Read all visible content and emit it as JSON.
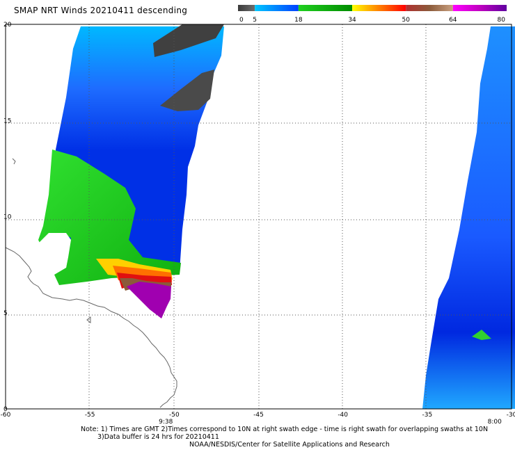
{
  "title": "SMAP NRT Winds  20210411 descending",
  "colorbar": {
    "segments": [
      {
        "from": 0,
        "to": 5,
        "colors": [
          "#3a3a3a",
          "#6e6e6e"
        ]
      },
      {
        "from": 5,
        "to": 18,
        "colors": [
          "#00c8ff",
          "#0040ff"
        ]
      },
      {
        "from": 18,
        "to": 34,
        "colors": [
          "#20d020",
          "#008c00"
        ]
      },
      {
        "from": 34,
        "to": 50,
        "colors": [
          "#ffff00",
          "#ff8000",
          "#ff0000"
        ]
      },
      {
        "from": 50,
        "to": 64,
        "colors": [
          "#b03030",
          "#8b5a3a",
          "#c8a080"
        ]
      },
      {
        "from": 64,
        "to": 80,
        "colors": [
          "#ff00ff",
          "#c000c0",
          "#6000a0"
        ]
      }
    ],
    "tick_labels": [
      "0",
      "5",
      "18",
      "34",
      "50",
      "64",
      "80"
    ]
  },
  "map": {
    "lon_range": [
      -60,
      -30
    ],
    "lat_range": [
      0,
      20
    ],
    "lon_tick_labels": [
      "-60",
      "-55",
      "-50",
      "-45",
      "-40",
      "-35",
      "-30"
    ],
    "lat_tick_labels": [
      "0",
      "5",
      "10",
      "15",
      "20"
    ],
    "swath_times": [
      {
        "lon": -50.5,
        "label": "9:38"
      },
      {
        "lon": -31,
        "label": "8:00"
      }
    ]
  },
  "notes": {
    "line1": "Note: 1) Times are GMT 2)Times correspond to 10N at right swath edge - time is right swath for overlapping swaths at 10N",
    "line2": "3)Data buffer is 24 hrs for 20210411",
    "line3": "NOAA/NESDIS/Center for Satellite Applications and Research"
  }
}
